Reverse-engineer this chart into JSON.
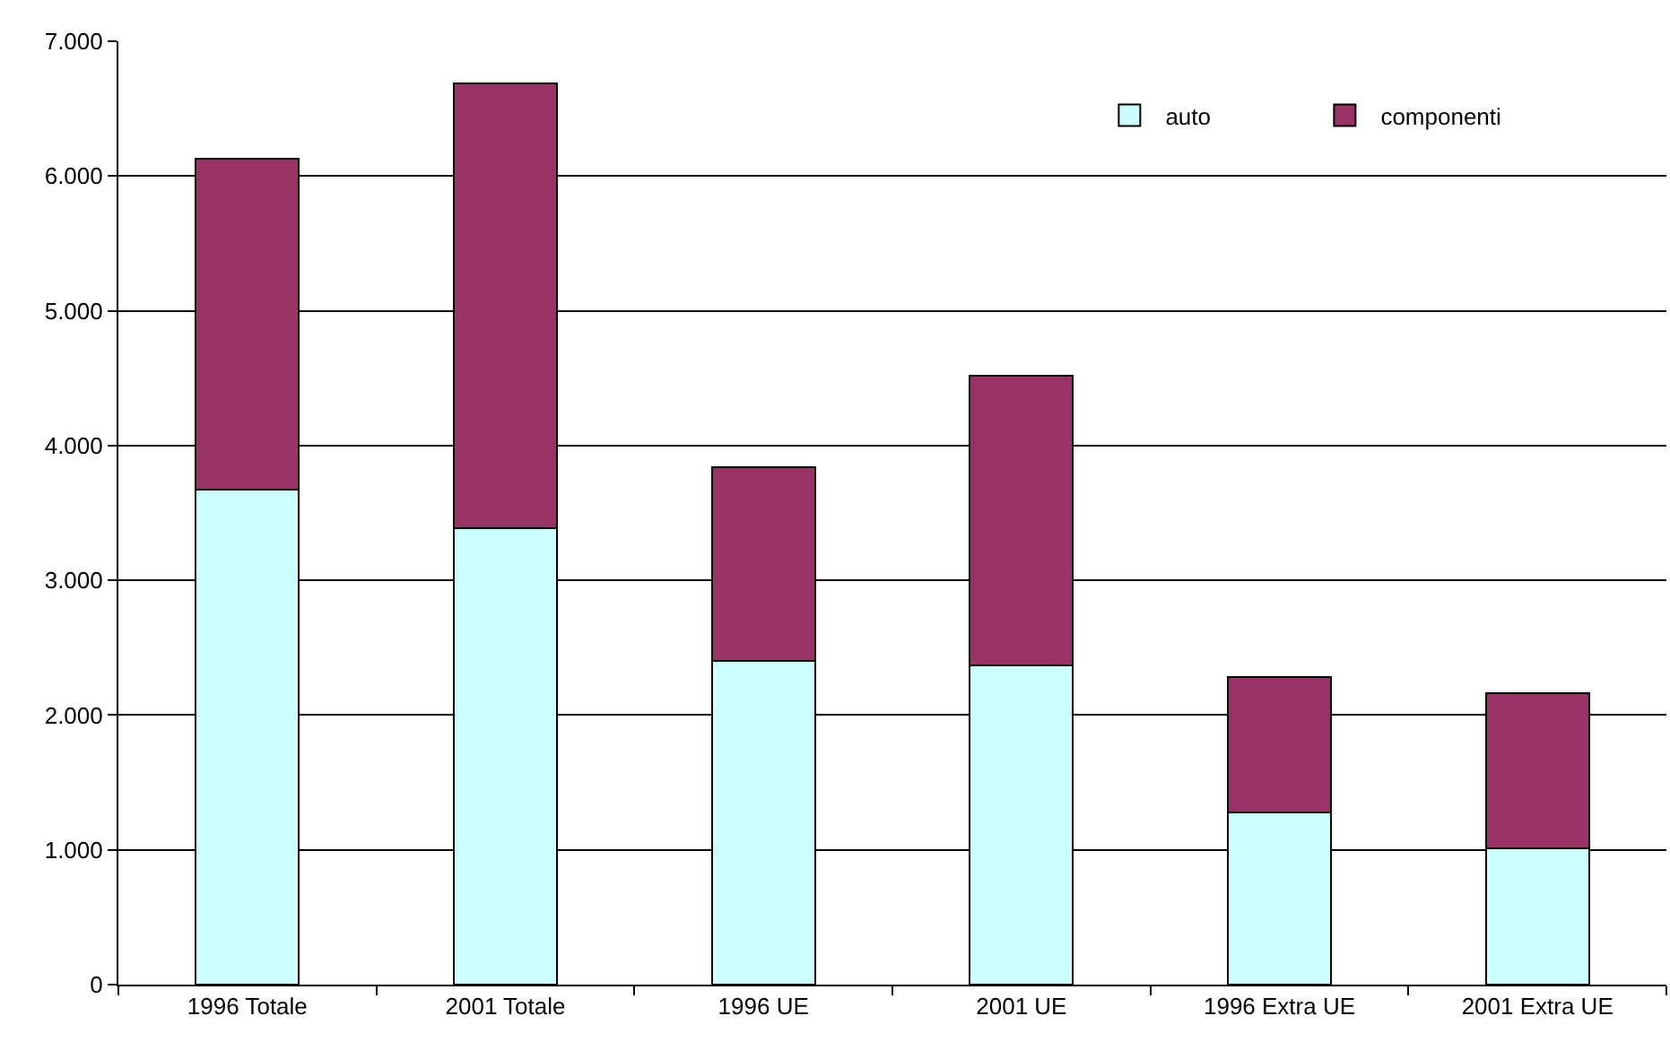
{
  "chart_data": {
    "type": "bar",
    "stacked": true,
    "categories": [
      "1996 Totale",
      "2001 Totale",
      "1996 UE",
      "2001 UE",
      "1996 Extra UE",
      "2001 Extra UE"
    ],
    "series": [
      {
        "name": "auto",
        "color": "#ccffff",
        "values": [
          3670,
          3390,
          2400,
          2370,
          1280,
          1010
        ]
      },
      {
        "name": "componenti",
        "color": "#993366",
        "values": [
          2460,
          3300,
          1440,
          2150,
          1000,
          1150
        ]
      }
    ],
    "ylim": [
      0,
      7000
    ],
    "yticks": [
      0,
      {
        "value": 1000,
        "label": "1.000"
      },
      {
        "value": 2000,
        "label": "2.000"
      },
      {
        "value": 3000,
        "label": "3.000"
      },
      {
        "value": 4000,
        "label": "4.000"
      },
      {
        "value": 5000,
        "label": "5.000"
      },
      {
        "value": 6000,
        "label": "6.000"
      },
      {
        "value": 7000,
        "label": "7.000"
      }
    ],
    "grid": "y",
    "legend": "top right"
  }
}
